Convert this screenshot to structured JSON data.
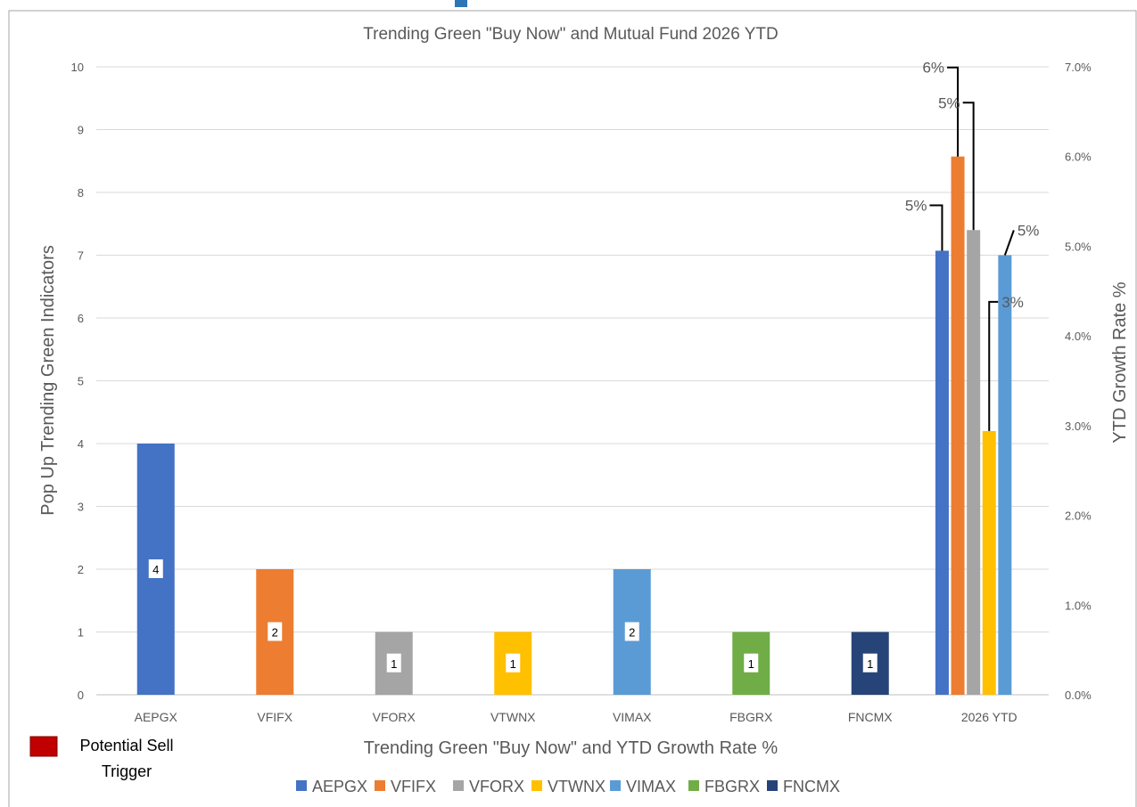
{
  "chart_data": {
    "type": "bar",
    "title": "Trending Green \"Buy Now\" and Mutual Fund 2026 YTD",
    "xlabel": "Trending Green \"Buy Now\" and YTD Growth Rate %",
    "ylabel": "Pop Up Trending Green Indicators",
    "y2label": "YTD Growth Rate %",
    "ylim": [
      0,
      10
    ],
    "y2lim": [
      0,
      7
    ],
    "yticks": [
      "0",
      "1",
      "2",
      "3",
      "4",
      "5",
      "6",
      "7",
      "8",
      "9",
      "10"
    ],
    "y2ticks": [
      "0.0%",
      "1.0%",
      "2.0%",
      "3.0%",
      "4.0%",
      "5.0%",
      "6.0%",
      "7.0%"
    ],
    "categories": [
      "AEPGX",
      "VFIFX",
      "VFORX",
      "VTWNX",
      "VIMAX",
      "FBGRX",
      "FNCMX",
      "2026 YTD"
    ],
    "grid": true,
    "legend_position": "bottom",
    "series": [
      {
        "name": "AEPGX",
        "color": "#4472C4"
      },
      {
        "name": "VFIFX",
        "color": "#ED7D31"
      },
      {
        "name": "VFORX",
        "color": "#A5A5A5"
      },
      {
        "name": "VTWNX",
        "color": "#FFC000"
      },
      {
        "name": "VIMAX",
        "color": "#5B9BD5"
      },
      {
        "name": "FBGRX",
        "color": "#70AD47"
      },
      {
        "name": "FNCMX",
        "color": "#264478"
      }
    ],
    "indicator_bars": [
      {
        "category": "AEPGX",
        "value": 4,
        "label": "4"
      },
      {
        "category": "VFIFX",
        "value": 2,
        "label": "2"
      },
      {
        "category": "VFORX",
        "value": 1,
        "label": "1"
      },
      {
        "category": "VTWNX",
        "value": 1,
        "label": "1"
      },
      {
        "category": "VIMAX",
        "value": 2,
        "label": "2"
      },
      {
        "category": "FBGRX",
        "value": 1,
        "label": "1"
      },
      {
        "category": "FNCMX",
        "value": 1,
        "label": "1"
      }
    ],
    "ytd_bars": [
      {
        "series": "AEPGX",
        "value": 4.95,
        "label": "5%"
      },
      {
        "series": "VFIFX",
        "value": 6.0,
        "label": "6%"
      },
      {
        "series": "VFORX",
        "value": 5.18,
        "label": "5%"
      },
      {
        "series": "VTWNX",
        "value": 2.94,
        "label": "3%"
      },
      {
        "series": "VIMAX",
        "value": 4.9,
        "label": "5%"
      }
    ]
  },
  "side_legend": {
    "label_line1": "Potential Sell",
    "label_line2": "Trigger",
    "color": "#C00000"
  }
}
